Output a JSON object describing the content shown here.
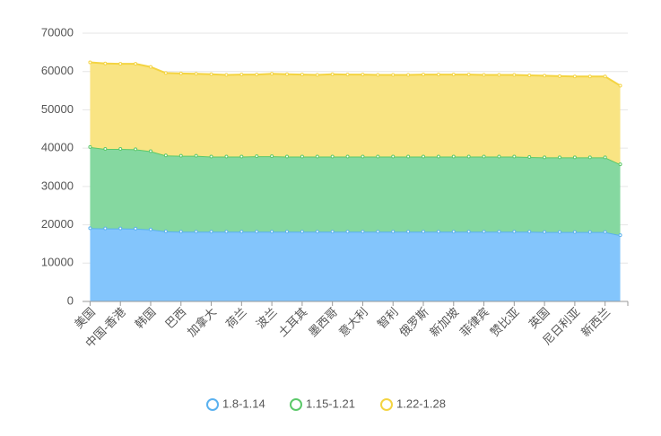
{
  "chart_data": {
    "type": "area",
    "stacked": true,
    "categories": [
      "美国",
      null,
      "中国-香港",
      null,
      "韩国",
      null,
      "巴西",
      null,
      "加拿大",
      null,
      "荷兰",
      null,
      "波兰",
      null,
      "土耳其",
      null,
      "墨西哥",
      null,
      "意大利",
      null,
      "智利",
      null,
      "俄罗斯",
      null,
      "新加坡",
      null,
      "菲律宾",
      null,
      "赞比亚",
      null,
      "英国",
      null,
      "尼日利亚",
      null,
      "新西兰",
      null
    ],
    "series": [
      {
        "name": "1.8-1.14",
        "color": "#5ab1ef",
        "fill": "#83c5fc",
        "values": [
          19100,
          19050,
          19050,
          19000,
          18800,
          18300,
          18200,
          18200,
          18200,
          18200,
          18200,
          18200,
          18200,
          18200,
          18200,
          18200,
          18200,
          18200,
          18200,
          18200,
          18200,
          18200,
          18200,
          18200,
          18200,
          18200,
          18200,
          18200,
          18200,
          18200,
          18100,
          18100,
          18100,
          18100,
          18100,
          17300
        ]
      },
      {
        "name": "1.15-1.21",
        "color": "#5cc96a",
        "fill": "#85d8a0",
        "values": [
          21200,
          20750,
          20750,
          20700,
          20400,
          19800,
          19800,
          19800,
          19600,
          19600,
          19600,
          19700,
          19700,
          19600,
          19600,
          19600,
          19600,
          19600,
          19600,
          19600,
          19600,
          19600,
          19600,
          19600,
          19600,
          19600,
          19600,
          19600,
          19600,
          19500,
          19500,
          19500,
          19500,
          19500,
          19500,
          18500
        ]
      },
      {
        "name": "1.22-1.28",
        "color": "#f4d442",
        "fill": "#f9e483",
        "values": [
          22100,
          22300,
          22200,
          22300,
          22000,
          21500,
          21500,
          21400,
          21500,
          21300,
          21400,
          21300,
          21500,
          21500,
          21400,
          21300,
          21500,
          21400,
          21400,
          21300,
          21300,
          21300,
          21400,
          21400,
          21400,
          21400,
          21300,
          21300,
          21300,
          21300,
          21300,
          21200,
          21100,
          21100,
          21100,
          20500
        ]
      }
    ],
    "ylim": [
      0,
      70000
    ],
    "yticks": [
      0,
      10000,
      20000,
      30000,
      40000,
      50000,
      60000,
      70000
    ],
    "grid": true,
    "legend": "bottom"
  }
}
